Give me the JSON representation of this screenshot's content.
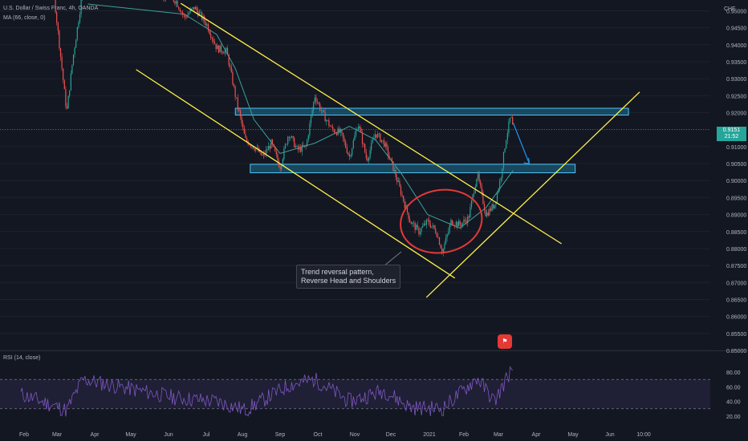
{
  "header": {
    "symbol_title": "U.S. Dollar / Swiss Franc, 4h, OANDA",
    "ma_indicator": "MA (66, close, 0)",
    "rsi_indicator": "RSI (14, close)",
    "currency": "CHF"
  },
  "price_tag": {
    "price": "0.9151",
    "countdown": "21:52"
  },
  "annotation": {
    "line1": "Trend reversal pattern,",
    "line2": "Reverse Head and Shoulders"
  },
  "icon_badge": "flag-icon",
  "chart_data": {
    "type": "line",
    "style": "candlestick",
    "price_axis": {
      "ticks": [
        "0.95000",
        "0.94500",
        "0.94000",
        "0.93500",
        "0.93000",
        "0.92500",
        "0.92000",
        "0.91500",
        "0.91000",
        "0.90500",
        "0.90000",
        "0.89500",
        "0.89000",
        "0.88500",
        "0.88000",
        "0.87500",
        "0.87000",
        "0.86500",
        "0.86000",
        "0.85500",
        "0.85000"
      ],
      "range": [
        0.85,
        0.952
      ]
    },
    "rsi_axis": {
      "ticks": [
        "80.00",
        "60.00",
        "40.00",
        "20.00"
      ],
      "range": [
        10,
        90
      ],
      "bands": [
        30,
        70
      ]
    },
    "x_axis": {
      "ticks": [
        "Feb",
        "Mar",
        "Apr",
        "May",
        "Jun",
        "Jul",
        "Aug",
        "Sep",
        "Oct",
        "Nov",
        "Dec",
        "2021",
        "Feb",
        "Mar",
        "Apr",
        "May",
        "Jun",
        "10:00"
      ]
    },
    "price_series": [
      {
        "x": "2020-02-01",
        "y": 0.97
      },
      {
        "x": "2020-02-25",
        "y": 0.964
      },
      {
        "x": "2020-03-09",
        "y": 0.92
      },
      {
        "x": "2020-03-14",
        "y": 0.936
      },
      {
        "x": "2020-03-22",
        "y": 0.956
      },
      {
        "x": "2020-03-26",
        "y": 0.964
      },
      {
        "x": "2020-06-05",
        "y": 0.953
      },
      {
        "x": "2020-06-12",
        "y": 0.948
      },
      {
        "x": "2020-06-20",
        "y": 0.951
      },
      {
        "x": "2020-06-30",
        "y": 0.946
      },
      {
        "x": "2020-07-08",
        "y": 0.939
      },
      {
        "x": "2020-07-16",
        "y": 0.938
      },
      {
        "x": "2020-07-23",
        "y": 0.925
      },
      {
        "x": "2020-07-31",
        "y": 0.912
      },
      {
        "x": "2020-08-07",
        "y": 0.91
      },
      {
        "x": "2020-08-14",
        "y": 0.907
      },
      {
        "x": "2020-08-21",
        "y": 0.911
      },
      {
        "x": "2020-08-28",
        "y": 0.904
      },
      {
        "x": "2020-09-04",
        "y": 0.914
      },
      {
        "x": "2020-09-11",
        "y": 0.909
      },
      {
        "x": "2020-09-18",
        "y": 0.91
      },
      {
        "x": "2020-09-25",
        "y": 0.925
      },
      {
        "x": "2020-10-01",
        "y": 0.92
      },
      {
        "x": "2020-10-09",
        "y": 0.915
      },
      {
        "x": "2020-10-16",
        "y": 0.914
      },
      {
        "x": "2020-10-23",
        "y": 0.907
      },
      {
        "x": "2020-10-30",
        "y": 0.917
      },
      {
        "x": "2020-11-06",
        "y": 0.906
      },
      {
        "x": "2020-11-13",
        "y": 0.914
      },
      {
        "x": "2020-11-20",
        "y": 0.911
      },
      {
        "x": "2020-11-27",
        "y": 0.904
      },
      {
        "x": "2020-12-04",
        "y": 0.896
      },
      {
        "x": "2020-12-11",
        "y": 0.888
      },
      {
        "x": "2020-12-18",
        "y": 0.885
      },
      {
        "x": "2020-12-25",
        "y": 0.888
      },
      {
        "x": "2021-01-01",
        "y": 0.885
      },
      {
        "x": "2021-01-06",
        "y": 0.879
      },
      {
        "x": "2021-01-13",
        "y": 0.888
      },
      {
        "x": "2021-01-20",
        "y": 0.887
      },
      {
        "x": "2021-01-27",
        "y": 0.889
      },
      {
        "x": "2021-02-03",
        "y": 0.902
      },
      {
        "x": "2021-02-10",
        "y": 0.89
      },
      {
        "x": "2021-02-17",
        "y": 0.893
      },
      {
        "x": "2021-02-22",
        "y": 0.901
      },
      {
        "x": "2021-02-26",
        "y": 0.912
      },
      {
        "x": "2021-03-02",
        "y": 0.919
      },
      {
        "x": "2021-03-04",
        "y": 0.9151
      }
    ],
    "ma_series": [
      {
        "x": "2020-03-26",
        "y": 0.952
      },
      {
        "x": "2020-06-12",
        "y": 0.949
      },
      {
        "x": "2020-07-08",
        "y": 0.943
      },
      {
        "x": "2020-07-23",
        "y": 0.933
      },
      {
        "x": "2020-08-07",
        "y": 0.918
      },
      {
        "x": "2020-08-28",
        "y": 0.908
      },
      {
        "x": "2020-09-25",
        "y": 0.911
      },
      {
        "x": "2020-10-23",
        "y": 0.916
      },
      {
        "x": "2020-11-13",
        "y": 0.912
      },
      {
        "x": "2020-12-04",
        "y": 0.902
      },
      {
        "x": "2020-12-25",
        "y": 0.89
      },
      {
        "x": "2021-01-20",
        "y": 0.886
      },
      {
        "x": "2021-02-10",
        "y": 0.892
      },
      {
        "x": "2021-03-04",
        "y": 0.903
      }
    ],
    "rsi_series": [
      {
        "x": "2020-02-01",
        "y": 50
      },
      {
        "x": "2020-03-09",
        "y": 28
      },
      {
        "x": "2020-03-22",
        "y": 70
      },
      {
        "x": "2020-06-05",
        "y": 45
      },
      {
        "x": "2020-07-08",
        "y": 40
      },
      {
        "x": "2020-07-31",
        "y": 28
      },
      {
        "x": "2020-09-04",
        "y": 62
      },
      {
        "x": "2020-09-25",
        "y": 70
      },
      {
        "x": "2020-10-23",
        "y": 40
      },
      {
        "x": "2020-11-20",
        "y": 55
      },
      {
        "x": "2020-12-11",
        "y": 32
      },
      {
        "x": "2021-01-06",
        "y": 30
      },
      {
        "x": "2021-02-03",
        "y": 72
      },
      {
        "x": "2021-02-17",
        "y": 40
      },
      {
        "x": "2021-03-02",
        "y": 82
      },
      {
        "x": "2021-03-04",
        "y": 70
      }
    ],
    "zones": [
      {
        "x_start": "2020-07-23",
        "x_end": "2021-06-05",
        "y_low": 0.9193,
        "y_high": 0.9213
      },
      {
        "x_start": "2020-08-04",
        "x_end": "2021-04-23",
        "y_low": 0.9023,
        "y_high": 0.9048
      }
    ],
    "trendlines": [
      {
        "x1": "2020-05-04",
        "y1": 0.9327,
        "x2": "2021-01-16",
        "y2": 0.8713
      },
      {
        "x1": "2020-06-09",
        "y1": 0.9522,
        "x2": "2021-04-12",
        "y2": 0.8814
      },
      {
        "x1": "2020-12-24",
        "y1": 0.8656,
        "x2": "2021-06-14",
        "y2": 0.9261
      }
    ],
    "circle_center": {
      "x": "2021-01-05",
      "y": 0.888
    },
    "arrow": {
      "x1": "2021-03-04",
      "y1": 0.917,
      "x2": "2021-03-17",
      "y2": 0.905
    },
    "colors": {
      "background": "#131722",
      "up": "#26a69a",
      "down": "#ef5350",
      "ma": "#3f9f99",
      "rsi": "#7e57c2",
      "trendline": "#fff04a",
      "zone": "#1f6f8f",
      "circle": "#e53935",
      "arrow": "#2196f3"
    }
  }
}
